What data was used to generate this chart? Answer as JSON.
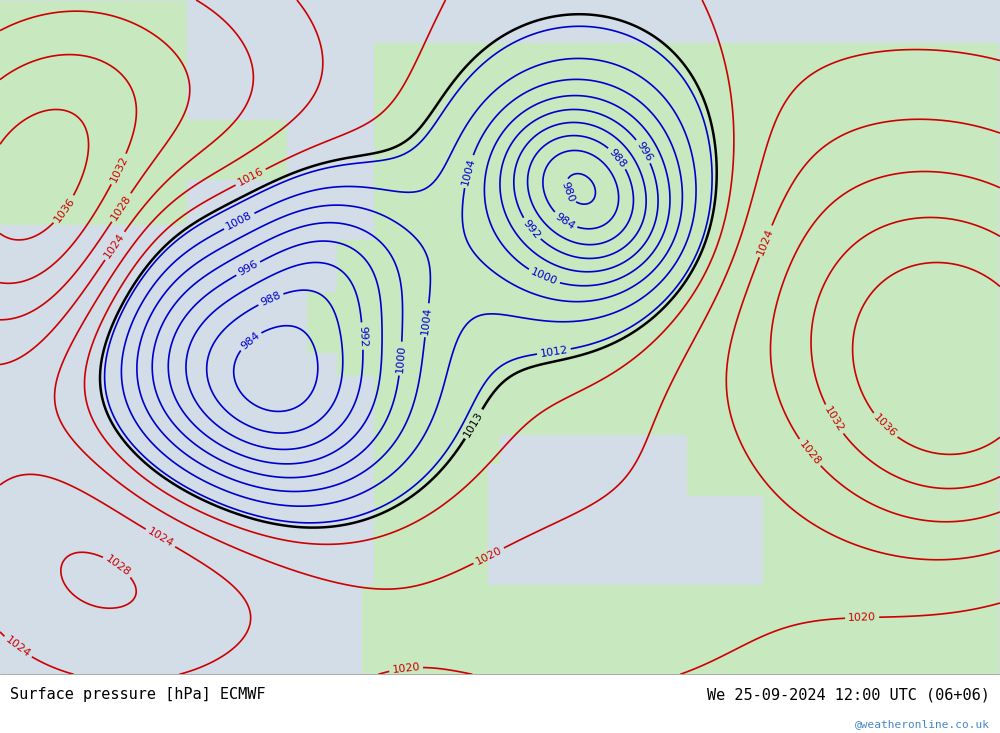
{
  "title_left": "Surface pressure [hPa] ECMWF",
  "title_right": "We 25-09-2024 12:00 UTC (06+06)",
  "watermark": "@weatheronline.co.uk",
  "background_ocean": "#d2dde8",
  "background_land": "#c8e8c0",
  "contour_blue_color": "#0000cc",
  "contour_red_color": "#cc0000",
  "contour_black_color": "#000000",
  "label_fontsize": 8,
  "title_fontsize": 11,
  "watermark_color": "#4488cc",
  "fig_bg": "#ffffff"
}
